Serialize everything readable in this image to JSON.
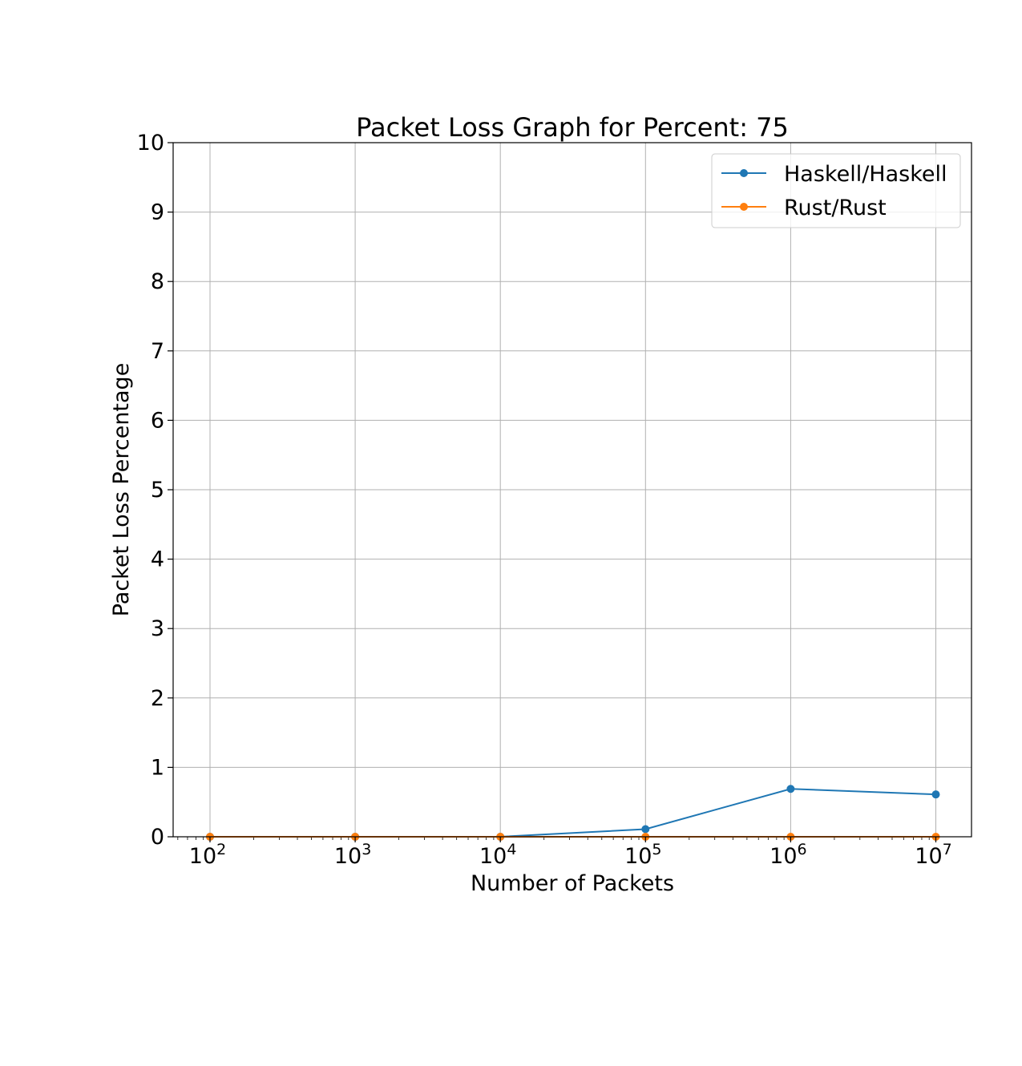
{
  "chart_data": {
    "type": "line",
    "title": "Packet Loss Graph for Percent: 75",
    "xlabel": "Number of Packets",
    "ylabel": "Packet Loss Percentage",
    "x_scale": "log",
    "x": [
      100,
      1000,
      10000,
      100000,
      1000000,
      10000000
    ],
    "xticks": [
      {
        "value": 100,
        "base": "10",
        "exp": "2"
      },
      {
        "value": 1000,
        "base": "10",
        "exp": "3"
      },
      {
        "value": 10000,
        "base": "10",
        "exp": "4"
      },
      {
        "value": 100000,
        "base": "10",
        "exp": "5"
      },
      {
        "value": 1000000,
        "base": "10",
        "exp": "6"
      },
      {
        "value": 10000000,
        "base": "10",
        "exp": "7"
      }
    ],
    "yticks": [
      "0",
      "1",
      "2",
      "3",
      "4",
      "5",
      "6",
      "7",
      "8",
      "9",
      "10"
    ],
    "ylim": [
      0,
      10
    ],
    "grid": true,
    "legend_position": "top-right",
    "series": [
      {
        "name": "Haskell/Haskell",
        "color": "#1f77b4",
        "values": [
          0,
          0,
          0,
          0.11,
          0.69,
          0.61
        ]
      },
      {
        "name": "Rust/Rust",
        "color": "#ff7f0e",
        "values": [
          0,
          0,
          0,
          0,
          0,
          0
        ]
      }
    ]
  }
}
